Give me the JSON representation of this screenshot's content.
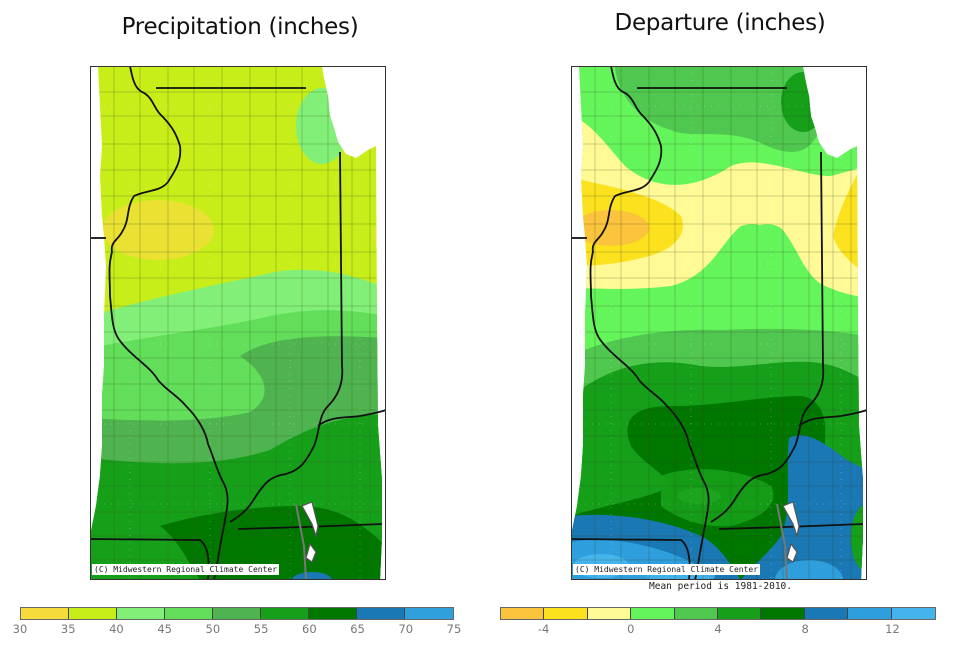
{
  "panels": [
    {
      "id": "precipitation",
      "title": "Precipitation (inches)",
      "credit": "(C) Midwestern Regional Climate Center",
      "footnote": "",
      "legend": {
        "ticks": [
          "30",
          "35",
          "40",
          "45",
          "50",
          "55",
          "60",
          "65",
          "70",
          "75"
        ],
        "colors": [
          "#f5dc3c",
          "#c8ee1a",
          "#82f078",
          "#62de5a",
          "#4fb450",
          "#16a01a",
          "#007800",
          "#1a78b4",
          "#30a0dc"
        ]
      }
    },
    {
      "id": "departure",
      "title": "Departure (inches)",
      "credit": "(C) Midwestern Regional Climate Center",
      "footnote": "Mean period is 1981-2010.",
      "legend": {
        "ticks": [
          "-4",
          "0",
          "4",
          "8",
          "12"
        ],
        "tick_positions": [
          1,
          3,
          5,
          7,
          9
        ],
        "colors": [
          "#fcc43c",
          "#fce21e",
          "#fffa96",
          "#64f55a",
          "#50c850",
          "#16a01a",
          "#007800",
          "#1a78b4",
          "#2e9edc",
          "#46b4ec"
        ]
      }
    }
  ],
  "chart_data": [
    {
      "type": "heatmap",
      "title": "Precipitation (inches)",
      "region": "Illinois (county outlines)",
      "legend_bins": [
        [
          30,
          35
        ],
        [
          35,
          40
        ],
        [
          40,
          45
        ],
        [
          45,
          50
        ],
        [
          50,
          55
        ],
        [
          55,
          60
        ],
        [
          60,
          65
        ],
        [
          65,
          70
        ],
        [
          70,
          75
        ]
      ],
      "legend_colors": [
        "#f5dc3c",
        "#c8ee1a",
        "#82f078",
        "#62de5a",
        "#4fb450",
        "#16a01a",
        "#007800",
        "#1a78b4",
        "#30a0dc"
      ],
      "legend_position": "bottom",
      "zones": [
        {
          "area": "northern half",
          "range": "35-40"
        },
        {
          "area": "west-central pocket",
          "range": "30-35"
        },
        {
          "area": "northeast (Chicago area)",
          "range": "40-45"
        },
        {
          "area": "central band",
          "range": "40-45"
        },
        {
          "area": "central-south",
          "range": "45-50"
        },
        {
          "area": "east-central",
          "range": "50-55"
        },
        {
          "area": "southern",
          "range": "55-60"
        },
        {
          "area": "far south",
          "range": "60-65"
        },
        {
          "area": "southern tip",
          "range": "65-70"
        }
      ]
    },
    {
      "type": "heatmap",
      "title": "Departure (inches)",
      "region": "Illinois (county outlines)",
      "legend_bins": [
        [
          -6,
          -4
        ],
        [
          -4,
          -2
        ],
        [
          -2,
          0
        ],
        [
          0,
          2
        ],
        [
          2,
          4
        ],
        [
          4,
          6
        ],
        [
          6,
          8
        ],
        [
          8,
          10
        ],
        [
          10,
          12
        ],
        [
          12,
          14
        ]
      ],
      "legend_ticks": [
        -4,
        0,
        4,
        8,
        12
      ],
      "legend_colors": [
        "#fcc43c",
        "#fce21e",
        "#fffa96",
        "#64f55a",
        "#50c850",
        "#16a01a",
        "#007800",
        "#1a78b4",
        "#2e9edc",
        "#46b4ec"
      ],
      "legend_position": "bottom",
      "annotation": "Mean period is 1981-2010.",
      "zones": [
        {
          "area": "far north",
          "range": "0 to 4"
        },
        {
          "area": "northeast corner",
          "range": "4 to 6"
        },
        {
          "area": "north-central band",
          "range": "-2 to 0"
        },
        {
          "area": "west-central",
          "range": "-6 to -2"
        },
        {
          "area": "east edge",
          "range": "-4 to -2"
        },
        {
          "area": "central",
          "range": "0 to 4"
        },
        {
          "area": "south-central",
          "range": "4 to 8"
        },
        {
          "area": "southeast",
          "range": "8 to 10"
        },
        {
          "area": "southwest",
          "range": "10 to 14"
        }
      ]
    }
  ]
}
